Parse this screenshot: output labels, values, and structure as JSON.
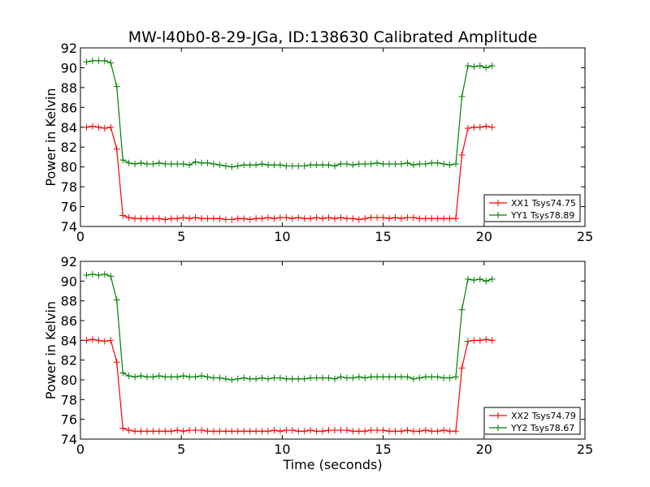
{
  "chart_data": [
    {
      "type": "line",
      "title": "MW-l40b0-8-29-JGa, ID:138630 Calibrated Amplitude",
      "xlabel": "",
      "ylabel": "Power in Kelvin",
      "xlim": [
        0,
        25
      ],
      "ylim": [
        74,
        92
      ],
      "xticks": [
        "0",
        "5",
        "10",
        "15",
        "20",
        "25"
      ],
      "yticks": [
        "74",
        "76",
        "78",
        "80",
        "82",
        "84",
        "86",
        "88",
        "90",
        "92"
      ],
      "grid": false,
      "legend_position": "lower-right",
      "x": [
        0.3,
        0.6,
        0.9,
        1.2,
        1.5,
        1.8,
        2.1,
        2.4,
        2.7,
        3.0,
        3.3,
        3.6,
        3.9,
        4.2,
        4.5,
        4.8,
        5.1,
        5.4,
        5.7,
        6.0,
        6.3,
        6.6,
        6.9,
        7.2,
        7.5,
        7.8,
        8.1,
        8.4,
        8.7,
        9.0,
        9.3,
        9.6,
        9.9,
        10.2,
        10.5,
        10.8,
        11.1,
        11.4,
        11.7,
        12.0,
        12.3,
        12.6,
        12.9,
        13.2,
        13.5,
        13.8,
        14.1,
        14.4,
        14.7,
        15.0,
        15.3,
        15.6,
        15.9,
        16.2,
        16.5,
        16.8,
        17.1,
        17.4,
        17.7,
        18.0,
        18.3,
        18.6,
        18.9,
        19.2,
        19.5,
        19.8,
        20.1,
        20.4
      ],
      "series": [
        {
          "name": "XX1 Tsys74.75",
          "color": "#ff0000",
          "values": [
            84.0,
            84.1,
            84.0,
            83.9,
            84.0,
            81.8,
            75.1,
            74.9,
            74.8,
            74.8,
            74.8,
            74.8,
            74.8,
            74.7,
            74.8,
            74.8,
            74.9,
            74.8,
            74.9,
            74.8,
            74.8,
            74.8,
            74.8,
            74.7,
            74.7,
            74.8,
            74.8,
            74.7,
            74.8,
            74.8,
            74.9,
            74.8,
            74.9,
            74.9,
            74.8,
            74.9,
            74.8,
            74.8,
            74.9,
            74.8,
            74.9,
            74.8,
            74.9,
            74.8,
            74.8,
            74.7,
            74.8,
            74.9,
            74.9,
            74.9,
            74.8,
            74.9,
            74.8,
            74.9,
            74.9,
            74.8,
            74.8,
            74.8,
            74.8,
            74.8,
            74.8,
            74.8,
            81.2,
            83.9,
            84.0,
            84.0,
            84.1,
            84.0
          ]
        },
        {
          "name": "YY1 Tsys78.89",
          "color": "#008000",
          "values": [
            90.6,
            90.7,
            90.7,
            90.7,
            90.5,
            88.1,
            80.7,
            80.4,
            80.3,
            80.4,
            80.3,
            80.3,
            80.4,
            80.3,
            80.3,
            80.3,
            80.3,
            80.2,
            80.5,
            80.4,
            80.4,
            80.3,
            80.2,
            80.1,
            80.0,
            80.1,
            80.2,
            80.2,
            80.2,
            80.3,
            80.2,
            80.2,
            80.2,
            80.1,
            80.1,
            80.1,
            80.1,
            80.2,
            80.2,
            80.2,
            80.2,
            80.1,
            80.3,
            80.3,
            80.2,
            80.3,
            80.3,
            80.3,
            80.4,
            80.3,
            80.3,
            80.3,
            80.3,
            80.4,
            80.2,
            80.3,
            80.3,
            80.4,
            80.4,
            80.3,
            80.2,
            80.3,
            87.1,
            90.2,
            90.1,
            90.2,
            90.0,
            90.2
          ]
        }
      ]
    },
    {
      "type": "line",
      "title": "",
      "xlabel": "Time (seconds)",
      "ylabel": "Power in Kelvin",
      "xlim": [
        0,
        25
      ],
      "ylim": [
        74,
        92
      ],
      "xticks": [
        "0",
        "5",
        "10",
        "15",
        "20",
        "25"
      ],
      "yticks": [
        "74",
        "76",
        "78",
        "80",
        "82",
        "84",
        "86",
        "88",
        "90",
        "92"
      ],
      "grid": false,
      "legend_position": "lower-right",
      "x": [
        0.3,
        0.6,
        0.9,
        1.2,
        1.5,
        1.8,
        2.1,
        2.4,
        2.7,
        3.0,
        3.3,
        3.6,
        3.9,
        4.2,
        4.5,
        4.8,
        5.1,
        5.4,
        5.7,
        6.0,
        6.3,
        6.6,
        6.9,
        7.2,
        7.5,
        7.8,
        8.1,
        8.4,
        8.7,
        9.0,
        9.3,
        9.6,
        9.9,
        10.2,
        10.5,
        10.8,
        11.1,
        11.4,
        11.7,
        12.0,
        12.3,
        12.6,
        12.9,
        13.2,
        13.5,
        13.8,
        14.1,
        14.4,
        14.7,
        15.0,
        15.3,
        15.6,
        15.9,
        16.2,
        16.5,
        16.8,
        17.1,
        17.4,
        17.7,
        18.0,
        18.3,
        18.6,
        18.9,
        19.2,
        19.5,
        19.8,
        20.1,
        20.4
      ],
      "series": [
        {
          "name": "XX2 Tsys74.79",
          "color": "#ff0000",
          "values": [
            84.0,
            84.1,
            84.0,
            83.9,
            84.0,
            81.8,
            75.1,
            74.9,
            74.8,
            74.8,
            74.8,
            74.8,
            74.8,
            74.8,
            74.8,
            74.9,
            74.8,
            74.9,
            74.9,
            74.9,
            74.8,
            74.8,
            74.8,
            74.8,
            74.8,
            74.8,
            74.8,
            74.8,
            74.8,
            74.8,
            74.8,
            74.9,
            74.8,
            74.9,
            74.9,
            74.8,
            74.8,
            74.9,
            74.8,
            74.8,
            74.9,
            74.9,
            74.9,
            74.9,
            74.8,
            74.8,
            74.8,
            74.9,
            74.9,
            74.9,
            74.8,
            74.8,
            74.8,
            74.9,
            74.8,
            74.8,
            74.9,
            74.8,
            74.8,
            74.9,
            74.8,
            74.8,
            81.2,
            83.9,
            84.0,
            84.0,
            84.1,
            84.0
          ]
        },
        {
          "name": "YY2 Tsys78.67",
          "color": "#008000",
          "values": [
            90.6,
            90.7,
            90.6,
            90.7,
            90.5,
            88.1,
            80.7,
            80.4,
            80.3,
            80.4,
            80.3,
            80.3,
            80.4,
            80.3,
            80.3,
            80.3,
            80.4,
            80.3,
            80.3,
            80.4,
            80.3,
            80.2,
            80.2,
            80.1,
            80.0,
            80.1,
            80.2,
            80.1,
            80.1,
            80.2,
            80.1,
            80.2,
            80.2,
            80.1,
            80.1,
            80.1,
            80.1,
            80.2,
            80.2,
            80.2,
            80.2,
            80.1,
            80.3,
            80.2,
            80.2,
            80.3,
            80.2,
            80.3,
            80.3,
            80.3,
            80.3,
            80.3,
            80.3,
            80.3,
            80.1,
            80.2,
            80.3,
            80.3,
            80.3,
            80.2,
            80.2,
            80.3,
            87.1,
            90.2,
            90.1,
            90.2,
            90.0,
            90.2
          ]
        }
      ]
    }
  ]
}
